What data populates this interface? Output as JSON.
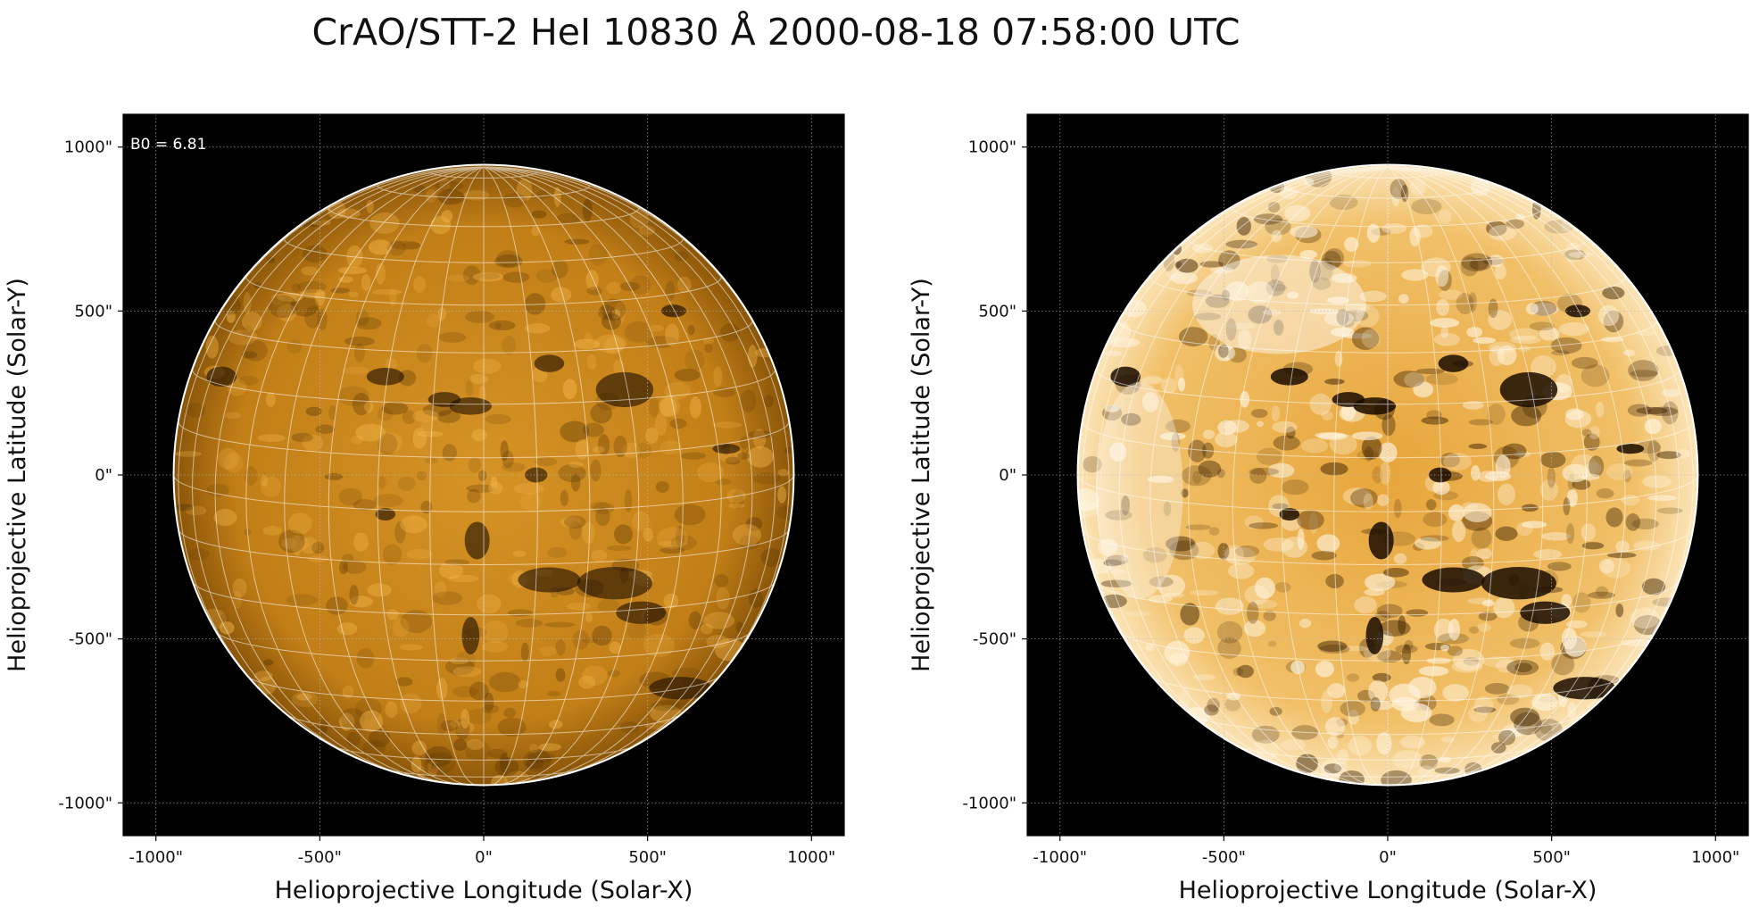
{
  "title": "CrAO/STT-2 HeI 10830 Å 2000-08-18 07:58:00 UTC",
  "colors": {
    "background": "#000000",
    "sun_mid": "#c9841a",
    "sun_bright": "#f0b040",
    "sun_dark": "#2a1600",
    "grid": "#ffffff",
    "limb": "#ffffff"
  },
  "panels": [
    {
      "id": "left",
      "xlabel": "Helioprojective Longitude (Solar-X)",
      "ylabel": "Helioprojective Latitude (Solar-Y)",
      "annotation": "B0 = 6.81",
      "contrast": "normal",
      "xticks": [
        -1000,
        -500,
        0,
        500,
        1000
      ],
      "yticks": [
        1000,
        500,
        0,
        -500,
        -1000
      ],
      "xtick_labels": [
        "-1000\"",
        "-500\"",
        "0\"",
        "500\"",
        "1000\""
      ],
      "ytick_labels": [
        "1000\"",
        "500\"",
        "0\"",
        "-500\"",
        "-1000\""
      ],
      "xlim": [
        -1100,
        1100
      ],
      "ylim": [
        -1100,
        1100
      ],
      "solar_radius_arcsec": 946,
      "b0_deg": 6.81
    },
    {
      "id": "right",
      "xlabel": "Helioprojective Longitude (Solar-X)",
      "ylabel": "Helioprojective Latitude (Solar-Y)",
      "annotation": "",
      "contrast": "enhanced",
      "xticks": [
        -1000,
        -500,
        0,
        500,
        1000
      ],
      "yticks": [
        1000,
        500,
        0,
        -500,
        -1000
      ],
      "xtick_labels": [
        "-1000\"",
        "-500\"",
        "0\"",
        "500\"",
        "1000\""
      ],
      "ytick_labels": [
        "1000\"",
        "500\"",
        "0\"",
        "-500\"",
        "-1000\""
      ],
      "xlim": [
        -1100,
        1100
      ],
      "ylim": [
        -1100,
        1100
      ],
      "solar_radius_arcsec": 946,
      "b0_deg": 6.81
    }
  ]
}
